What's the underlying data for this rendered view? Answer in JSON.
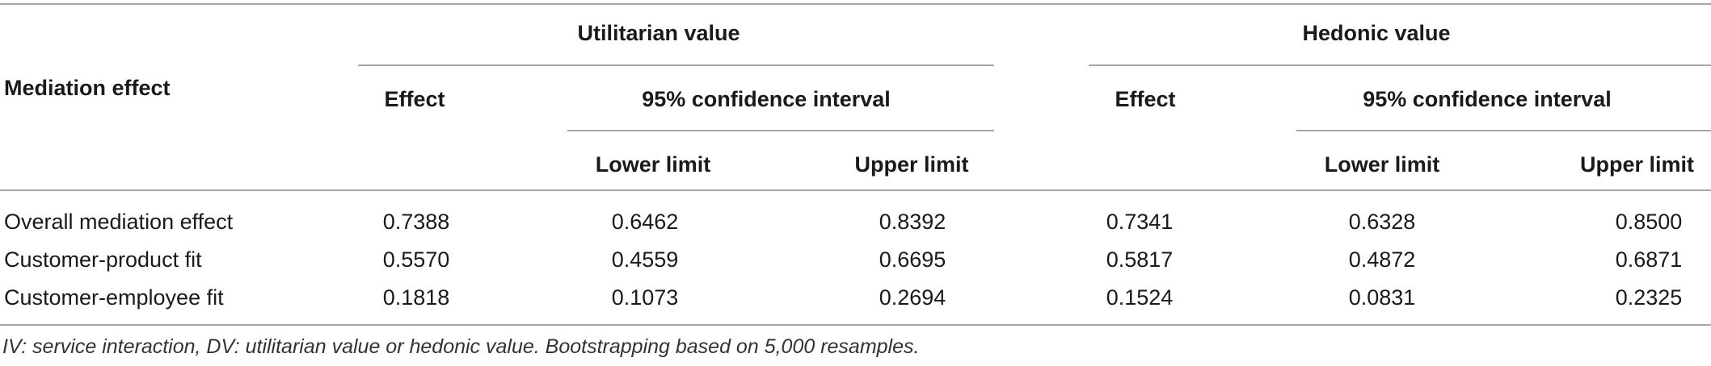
{
  "table": {
    "stub_header": "Mediation effect",
    "groups": [
      {
        "title": "Utilitarian value",
        "effect_label": "Effect",
        "ci_label": "95% confidence interval",
        "lower_label": "Lower limit",
        "upper_label": "Upper limit"
      },
      {
        "title": "Hedonic value",
        "effect_label": "Effect",
        "ci_label": "95% confidence interval",
        "lower_label": "Lower limit",
        "upper_label": "Upper limit"
      }
    ],
    "rows": [
      {
        "label": "Overall mediation effect",
        "values": [
          "0.7388",
          "0.6462",
          "0.8392",
          "0.7341",
          "0.6328",
          "0.8500"
        ]
      },
      {
        "label": "Customer-product fit",
        "values": [
          "0.5570",
          "0.4559",
          "0.6695",
          "0.5817",
          "0.4872",
          "0.6871"
        ]
      },
      {
        "label": "Customer-employee fit",
        "values": [
          "0.1818",
          "0.1073",
          "0.2694",
          "0.1524",
          "0.0831",
          "0.2325"
        ]
      }
    ],
    "note": "IV: service interaction, DV: utilitarian value or hedonic value. Bootstrapping based on 5,000 resamples."
  }
}
